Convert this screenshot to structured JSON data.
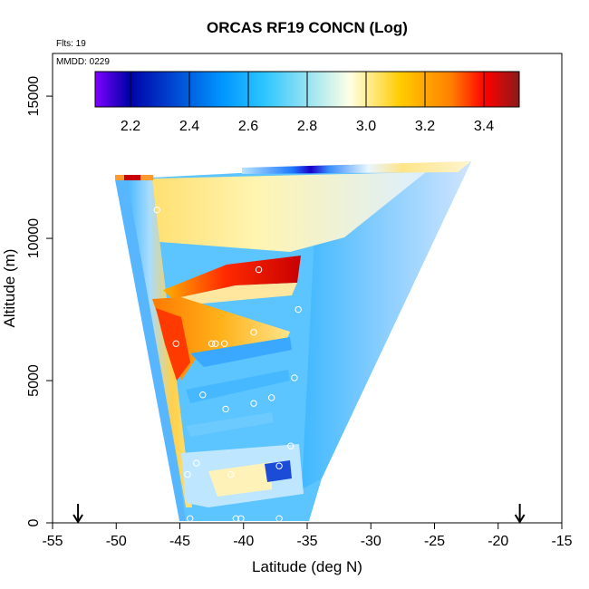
{
  "chart_data": {
    "type": "heatmap",
    "title": "ORCAS RF19 CONCN (Log)",
    "flights_label": "Flts: 19",
    "date_label": "MMDD: 0229",
    "xlabel": "Latitude (deg N)",
    "ylabel": "Altitude (m)",
    "xlim": [
      -55,
      -15
    ],
    "ylim": [
      0,
      16500
    ],
    "x_ticks": [
      -55,
      -50,
      -45,
      -40,
      -35,
      -30,
      -25,
      -20,
      -15
    ],
    "y_ticks": [
      0,
      5000,
      10000,
      15000
    ],
    "colorbar": {
      "range": [
        2.08,
        3.52
      ],
      "ticks": [
        2.2,
        2.4,
        2.6,
        2.8,
        3.0,
        3.2,
        3.4
      ],
      "tick_labels": [
        "2.2",
        "2.4",
        "2.6",
        "2.8",
        "3.0",
        "3.2",
        "3.4"
      ],
      "stops": [
        "#7e00ff",
        "#0000a8",
        "#0096ff",
        "#2ec6ff",
        "#ffffe6",
        "#ffcc00",
        "#ff7f00",
        "#ff0000",
        "#8a1a1a"
      ]
    },
    "markers": [
      {
        "label": "start",
        "lat": -53
      },
      {
        "label": "end",
        "lat": -18.3
      }
    ],
    "samples": [
      {
        "lat": -48.8,
        "alt": 12400
      },
      {
        "lat": -48.2,
        "alt": 12400
      },
      {
        "lat": -47.5,
        "alt": 12400
      },
      {
        "lat": -46.8,
        "alt": 11000
      },
      {
        "lat": -38.8,
        "alt": 8900
      },
      {
        "lat": -35.7,
        "alt": 7500
      },
      {
        "lat": -39.2,
        "alt": 6700
      },
      {
        "lat": -41.5,
        "alt": 6300
      },
      {
        "lat": -42.5,
        "alt": 6300
      },
      {
        "lat": -42.2,
        "alt": 6300
      },
      {
        "lat": -45.3,
        "alt": 6300
      },
      {
        "lat": -36.0,
        "alt": 5100
      },
      {
        "lat": -43.2,
        "alt": 4500
      },
      {
        "lat": -37.8,
        "alt": 4400
      },
      {
        "lat": -39.2,
        "alt": 4200
      },
      {
        "lat": -41.4,
        "alt": 4000
      },
      {
        "lat": -36.3,
        "alt": 2700
      },
      {
        "lat": -43.7,
        "alt": 2100
      },
      {
        "lat": -37.2,
        "alt": 2000
      },
      {
        "lat": -44.4,
        "alt": 1700
      },
      {
        "lat": -41.0,
        "alt": 1700
      },
      {
        "lat": -44.2,
        "alt": 150
      },
      {
        "lat": -40.6,
        "alt": 150
      },
      {
        "lat": -40.2,
        "alt": 150
      },
      {
        "lat": -37.2,
        "alt": 150
      },
      {
        "lat": -34.5,
        "alt": 12700
      },
      {
        "lat": -33.6,
        "alt": 12700
      },
      {
        "lat": -33.0,
        "alt": 12700
      },
      {
        "lat": -32.4,
        "alt": 12700
      },
      {
        "lat": -31.6,
        "alt": 12700
      },
      {
        "lat": -30.6,
        "alt": 12800
      },
      {
        "lat": -29.8,
        "alt": 12800
      },
      {
        "lat": -28.8,
        "alt": 12900
      },
      {
        "lat": -27.2,
        "alt": 12900
      },
      {
        "lat": -26.2,
        "alt": 12900
      },
      {
        "lat": -25.0,
        "alt": 12900
      },
      {
        "lat": -23.0,
        "alt": 13000
      }
    ]
  }
}
